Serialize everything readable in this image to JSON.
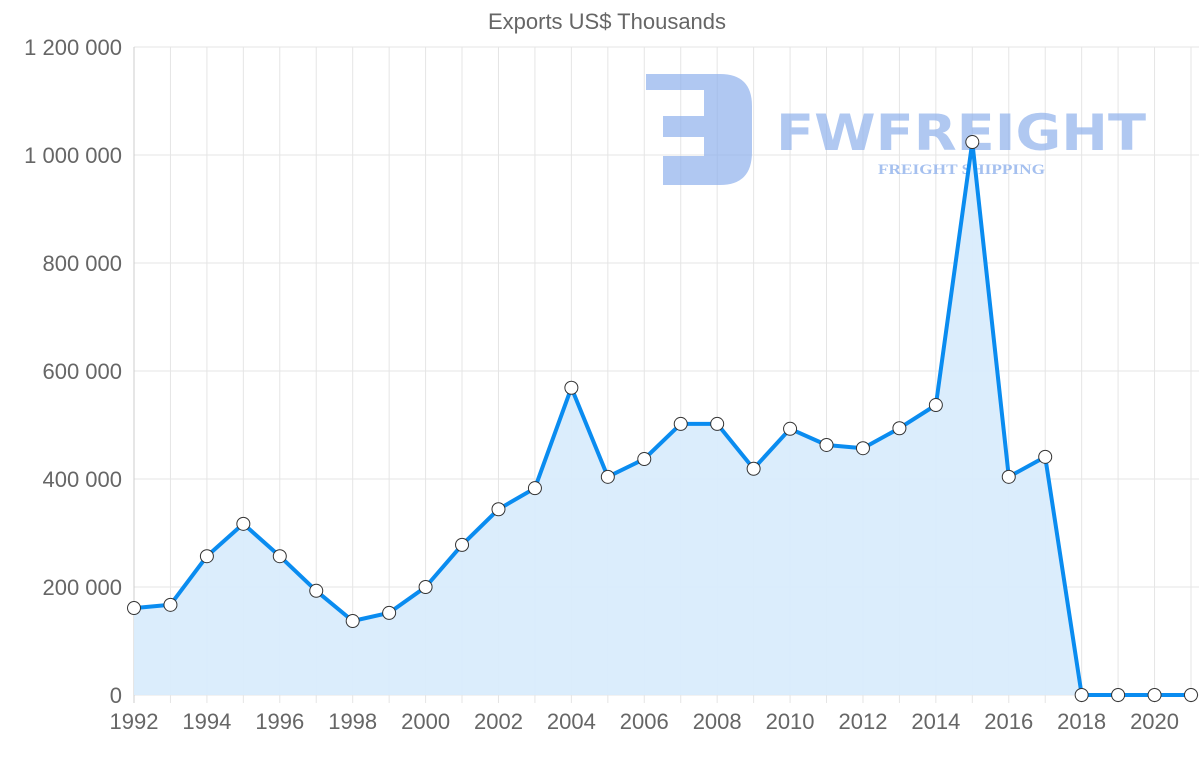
{
  "chart_data": {
    "type": "area",
    "title": "Exports US$ Thousands",
    "xlabel": "",
    "ylabel": "",
    "x": [
      1992,
      1993,
      1994,
      1995,
      1996,
      1997,
      1998,
      1999,
      2000,
      2001,
      2002,
      2003,
      2004,
      2005,
      2006,
      2007,
      2008,
      2009,
      2010,
      2011,
      2012,
      2013,
      2014,
      2015,
      2016,
      2017,
      2018,
      2019,
      2020,
      2021
    ],
    "series": [
      {
        "name": "Exports US$ Thousands",
        "values": [
          161000,
          167000,
          257000,
          317000,
          257000,
          193000,
          137000,
          152000,
          200000,
          278000,
          344000,
          383000,
          569000,
          404000,
          437000,
          502000,
          502000,
          419000,
          493000,
          463000,
          457000,
          494000,
          537000,
          1024000,
          404000,
          441000,
          0,
          0,
          0,
          0
        ]
      }
    ],
    "ylim": [
      0,
      1200000
    ],
    "xlim": [
      1992,
      2021
    ],
    "yticks": [
      "0",
      "200 000",
      "400 000",
      "600 000",
      "800 000",
      "1 000 000",
      "1 200 000"
    ],
    "xticks": [
      "1992",
      "1994",
      "1996",
      "1998",
      "2000",
      "2002",
      "2004",
      "2006",
      "2008",
      "2010",
      "2012",
      "2014",
      "2016",
      "2018",
      "2020"
    ],
    "grid": true,
    "colors": {
      "line": "#0a8cf0",
      "fill": "#d9ecfc",
      "point_fill": "#ffffff",
      "point_stroke": "#333333",
      "grid": "#e5e5e5"
    }
  },
  "watermark": {
    "brand": "FWFREIGHT",
    "tagline": "FREIGHT SHIPPING"
  }
}
